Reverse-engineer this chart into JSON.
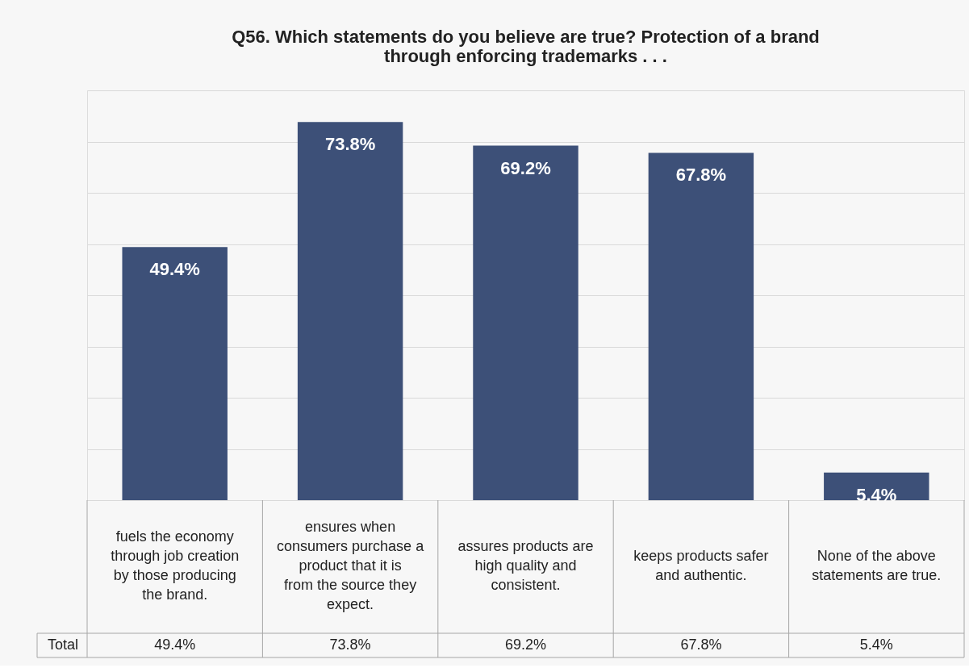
{
  "chart_data": {
    "type": "bar",
    "title": "Q56. Which statements do you believe are true? Protection of a brand through enforcing trademarks . . .",
    "categories": [
      "fuels the economy through job creation by those producing the brand.",
      "ensures when consumers purchase a product that it is from the source they expect.",
      "assures products are high quality and consistent.",
      "keeps products safer and authentic.",
      "None of the above statements are true."
    ],
    "series": [
      {
        "name": "Total",
        "color": "#3d5078",
        "values": [
          49.4,
          73.8,
          69.2,
          67.8,
          5.4
        ],
        "value_labels": [
          "49.4%",
          "73.8%",
          "69.2%",
          "67.8%",
          "5.4%"
        ]
      }
    ],
    "ylim": [
      0,
      80
    ],
    "yticks": [
      {
        "value": 0,
        "label": null
      },
      {
        "value": 10,
        "label": null
      },
      {
        "value": 20,
        "label": null
      },
      {
        "value": 30,
        "label": null
      },
      {
        "value": 40,
        "label": null
      },
      {
        "value": 50,
        "label": null
      },
      {
        "value": 60,
        "label": null
      },
      {
        "value": 70,
        "label": null
      },
      {
        "value": 80,
        "label": null
      }
    ],
    "grid": "y",
    "tick_labels": "x"
  }
}
